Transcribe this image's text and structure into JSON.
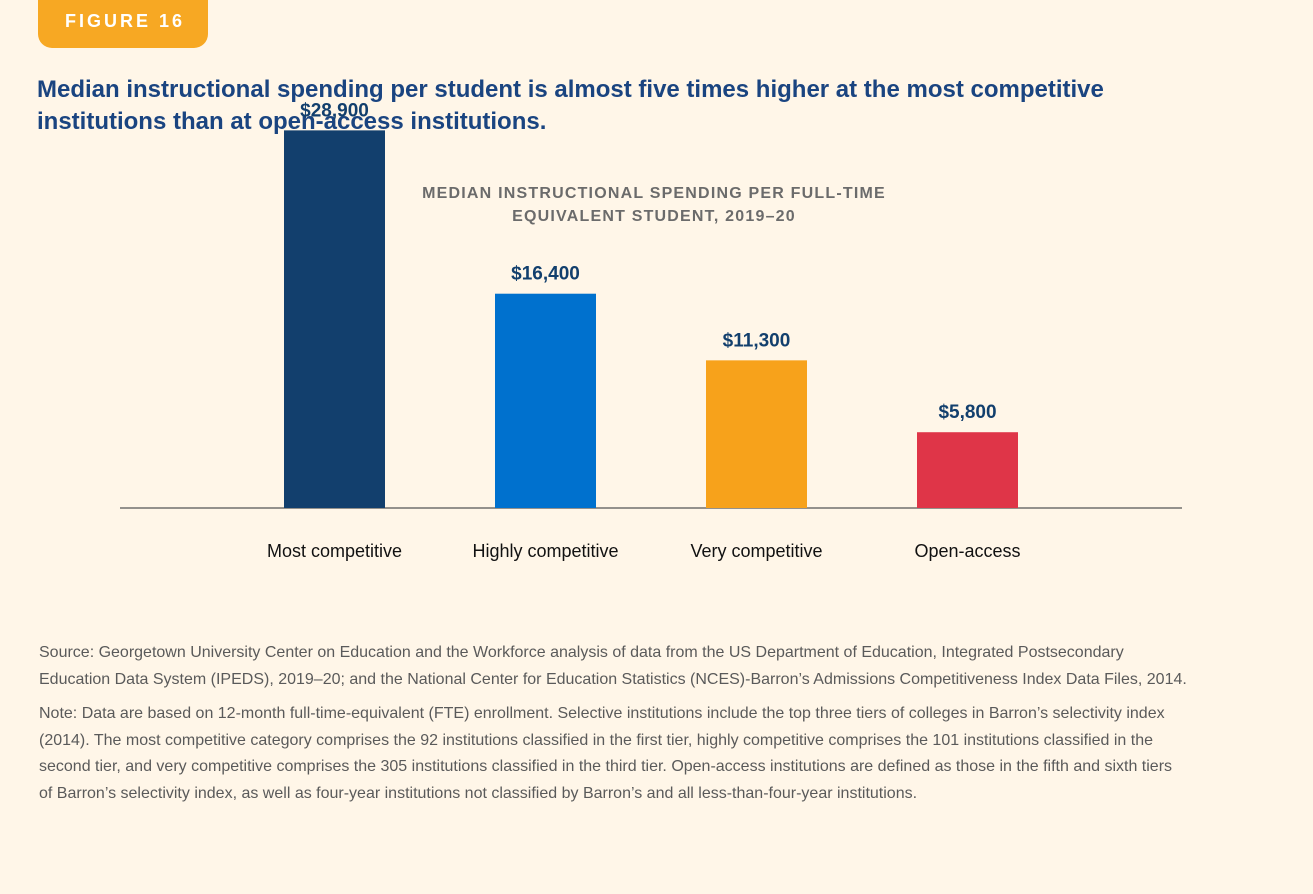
{
  "figure_label": "FIGURE 16",
  "headline": "Median instructional spending per student is almost five times higher at the most competitive institutions than at open-access institutions.",
  "chart_data": {
    "type": "bar",
    "title_lines": [
      "MEDIAN INSTRUCTIONAL SPENDING PER FULL-TIME",
      "EQUIVALENT STUDENT, 2019–20"
    ],
    "categories": [
      "Most competitive",
      "Highly competitive",
      "Very competitive",
      "Open-access"
    ],
    "values": [
      28900,
      16400,
      11300,
      5800
    ],
    "data_labels": [
      "$28,900",
      "$16,400",
      "$11,300",
      "$5,800"
    ],
    "bar_colors": [
      "#123F6D",
      "#0071CE",
      "#F7A21B",
      "#DF3548"
    ],
    "ylim": [
      0,
      30000
    ],
    "grid": false,
    "legend": "none"
  },
  "source_text": "Source: Georgetown University Center on Education and the Workforce analysis of data from the US Department of Education, Integrated Postsecondary Education Data System (IPEDS), 2019–20; and the National Center for Education Statistics (NCES)-Barron’s Admissions Competitiveness Index Data Files, 2014.",
  "note_text": "Note: Data are based on 12-month full-time-equivalent (FTE) enrollment. Selective institutions include the top three tiers of colleges in Barron’s selectivity index (2014). The most competitive category comprises the 92 institutions classified in the first tier, highly competitive comprises the 101 institutions classified in the second tier, and very competitive comprises the 305 institutions classified in the third tier. Open-access institutions are defined as those in the fifth and sixth tiers of Barron’s selectivity index, as well as four-year institutions not classified by Barron’s and all less-than-four-year institutions.",
  "colors": {
    "background": "#FFF6E8",
    "badge": "#F7A823",
    "headline": "#1A4480",
    "axis": "#555555"
  }
}
